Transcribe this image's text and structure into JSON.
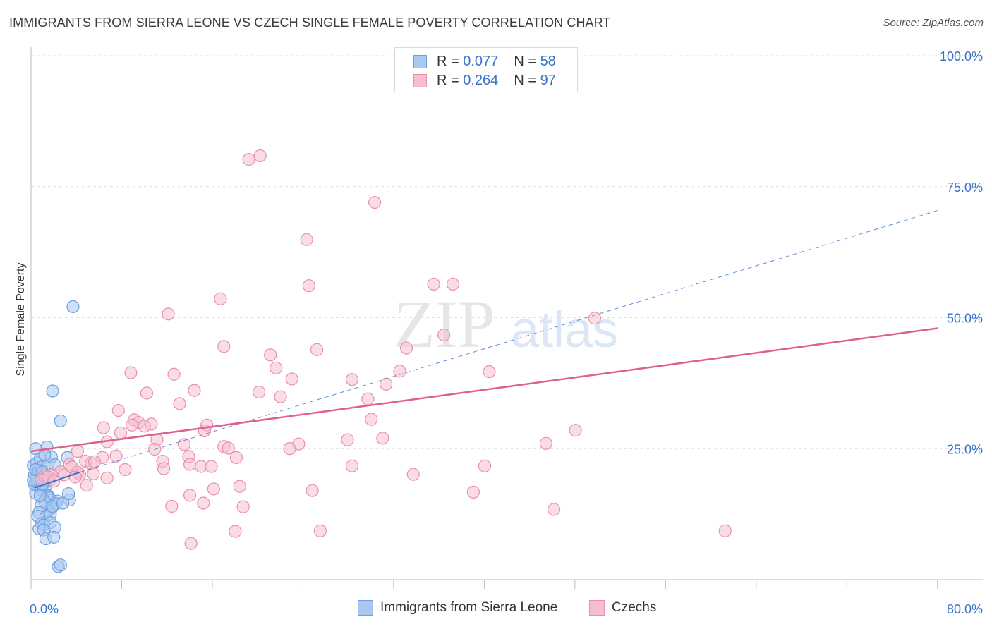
{
  "header": {
    "title": "IMMIGRANTS FROM SIERRA LEONE VS CZECH SINGLE FEMALE POVERTY CORRELATION CHART",
    "source": "Source: ZipAtlas.com"
  },
  "watermark": {
    "zip": "ZIP",
    "atlas": "atlas"
  },
  "legend_top": {
    "rows": [
      {
        "r_label": "R =",
        "r_value": "0.077",
        "n_label": "N =",
        "n_value": "58"
      },
      {
        "r_label": "R =",
        "r_value": "0.264",
        "n_label": "N =",
        "n_value": "97"
      }
    ]
  },
  "colors": {
    "blue_fill": "#a9c8f0",
    "blue_stroke": "#6f9fe0",
    "blue_line": "#3a6fd0",
    "pink_fill": "#f6bfd0",
    "pink_stroke": "#e98fae",
    "pink_line": "#e0608c",
    "tick_label": "#3a72c8"
  },
  "chart_data": {
    "type": "scatter",
    "title": "IMMIGRANTS FROM SIERRA LEONE VS CZECH SINGLE FEMALE POVERTY CORRELATION CHART",
    "ylabel": "Single Female Poverty",
    "xlabel": "",
    "xlim": [
      0,
      80
    ],
    "ylim": [
      0,
      100
    ],
    "x_tick_labels": [
      "0.0%",
      "80.0%"
    ],
    "y_ticks": [
      25,
      50,
      75,
      100
    ],
    "y_tick_labels": [
      "25.0%",
      "50.0%",
      "75.0%",
      "100.0%"
    ],
    "grid": true,
    "legend_position": "top-center",
    "series": [
      {
        "name": "Immigrants from Sierra Leone",
        "r": 0.077,
        "n": 58,
        "color": "blue",
        "trend": {
          "x": [
            0.3,
            4.3
          ],
          "y": [
            17.5,
            20.5
          ],
          "style": "solid"
        },
        "trend_ext": {
          "x": [
            4.3,
            80
          ],
          "y": [
            20.5,
            70.5
          ],
          "style": "dashed"
        },
        "points": [
          [
            3.7,
            52.1
          ],
          [
            1.9,
            36.0
          ],
          [
            2.6,
            30.3
          ],
          [
            3.2,
            23.3
          ],
          [
            3.4,
            15.2
          ],
          [
            1.4,
            25.3
          ],
          [
            0.4,
            25.0
          ],
          [
            0.2,
            21.8
          ],
          [
            0.3,
            20.0
          ],
          [
            0.5,
            22.3
          ],
          [
            0.6,
            19.6
          ],
          [
            0.6,
            17.8
          ],
          [
            0.7,
            20.8
          ],
          [
            0.8,
            23.1
          ],
          [
            0.9,
            21.5
          ],
          [
            1.0,
            19.4
          ],
          [
            1.2,
            18.5
          ],
          [
            1.3,
            17.9
          ],
          [
            0.8,
            17.2
          ],
          [
            1.5,
            16.0
          ],
          [
            1.6,
            15.6
          ],
          [
            1.7,
            15.2
          ],
          [
            1.5,
            22.1
          ],
          [
            1.8,
            23.4
          ],
          [
            2.1,
            21.9
          ],
          [
            2.3,
            15.0
          ],
          [
            2.2,
            14.5
          ],
          [
            1.8,
            13.6
          ],
          [
            1.5,
            13.2
          ],
          [
            1.2,
            14.9
          ],
          [
            0.9,
            14.2
          ],
          [
            0.7,
            12.8
          ],
          [
            0.6,
            12.1
          ],
          [
            1.3,
            12.0
          ],
          [
            1.7,
            12.5
          ],
          [
            1.9,
            14.0
          ],
          [
            0.4,
            16.5
          ],
          [
            0.3,
            18.2
          ],
          [
            0.5,
            19.0
          ],
          [
            0.9,
            10.7
          ],
          [
            1.1,
            10.4
          ],
          [
            1.7,
            10.9
          ],
          [
            2.1,
            10.0
          ],
          [
            0.7,
            9.7
          ],
          [
            1.1,
            9.5
          ],
          [
            1.3,
            7.8
          ],
          [
            2.0,
            8.1
          ],
          [
            2.4,
            2.5
          ],
          [
            2.6,
            2.8
          ],
          [
            0.2,
            19.0
          ],
          [
            1.0,
            18.2
          ],
          [
            1.6,
            19.0
          ],
          [
            0.8,
            16.0
          ],
          [
            2.8,
            14.6
          ],
          [
            3.3,
            16.4
          ],
          [
            1.2,
            23.8
          ],
          [
            0.4,
            21.0
          ],
          [
            1.0,
            20.6
          ]
        ]
      },
      {
        "name": "Czechs",
        "r": 0.264,
        "n": 97,
        "color": "pink",
        "trend": {
          "x": [
            0,
            80
          ],
          "y": [
            24.5,
            48.0
          ],
          "style": "solid"
        },
        "points": [
          [
            20.2,
            80.9
          ],
          [
            19.2,
            80.2
          ],
          [
            30.3,
            72.0
          ],
          [
            24.3,
            64.9
          ],
          [
            24.5,
            56.1
          ],
          [
            35.5,
            56.4
          ],
          [
            37.2,
            56.4
          ],
          [
            16.7,
            53.6
          ],
          [
            12.1,
            50.7
          ],
          [
            49.7,
            49.9
          ],
          [
            36.4,
            46.7
          ],
          [
            17.0,
            44.5
          ],
          [
            25.2,
            43.9
          ],
          [
            33.1,
            44.2
          ],
          [
            21.1,
            42.9
          ],
          [
            21.6,
            40.4
          ],
          [
            8.8,
            39.5
          ],
          [
            12.6,
            39.2
          ],
          [
            40.4,
            39.7
          ],
          [
            32.5,
            39.8
          ],
          [
            23.0,
            38.3
          ],
          [
            28.3,
            38.2
          ],
          [
            31.3,
            37.3
          ],
          [
            14.4,
            36.1
          ],
          [
            10.2,
            35.6
          ],
          [
            20.1,
            35.8
          ],
          [
            22.0,
            34.9
          ],
          [
            29.7,
            34.5
          ],
          [
            13.1,
            33.6
          ],
          [
            7.7,
            32.3
          ],
          [
            9.1,
            30.5
          ],
          [
            9.5,
            30.0
          ],
          [
            10.6,
            29.7
          ],
          [
            8.9,
            29.5
          ],
          [
            10.0,
            29.3
          ],
          [
            15.5,
            29.5
          ],
          [
            30.0,
            30.6
          ],
          [
            6.4,
            29.0
          ],
          [
            7.9,
            28.0
          ],
          [
            15.3,
            28.4
          ],
          [
            48.0,
            28.5
          ],
          [
            11.1,
            26.7
          ],
          [
            6.7,
            26.3
          ],
          [
            13.5,
            25.8
          ],
          [
            17.0,
            25.4
          ],
          [
            17.4,
            25.1
          ],
          [
            23.6,
            25.9
          ],
          [
            22.8,
            25.0
          ],
          [
            27.9,
            26.7
          ],
          [
            31.0,
            27.0
          ],
          [
            45.4,
            26.0
          ],
          [
            10.9,
            24.9
          ],
          [
            4.1,
            24.5
          ],
          [
            6.3,
            23.3
          ],
          [
            7.5,
            23.6
          ],
          [
            13.9,
            23.5
          ],
          [
            18.1,
            23.3
          ],
          [
            3.4,
            22.0
          ],
          [
            4.8,
            22.6
          ],
          [
            5.3,
            22.2
          ],
          [
            5.6,
            22.5
          ],
          [
            14.0,
            22.0
          ],
          [
            11.6,
            22.6
          ],
          [
            15.0,
            21.6
          ],
          [
            15.9,
            21.6
          ],
          [
            28.3,
            21.7
          ],
          [
            40.0,
            21.7
          ],
          [
            11.7,
            21.2
          ],
          [
            8.3,
            21.0
          ],
          [
            3.6,
            21.5
          ],
          [
            2.6,
            20.6
          ],
          [
            2.9,
            20.0
          ],
          [
            4.3,
            20.1
          ],
          [
            5.5,
            20.2
          ],
          [
            1.8,
            20.0
          ],
          [
            1.2,
            19.8
          ],
          [
            0.9,
            19.1
          ],
          [
            1.5,
            19.6
          ],
          [
            2.0,
            18.8
          ],
          [
            4.1,
            20.5
          ],
          [
            3.9,
            19.6
          ],
          [
            6.7,
            19.4
          ],
          [
            33.7,
            20.1
          ],
          [
            4.9,
            18.0
          ],
          [
            16.1,
            17.3
          ],
          [
            18.4,
            17.8
          ],
          [
            24.8,
            17.0
          ],
          [
            39.0,
            16.7
          ],
          [
            14.0,
            16.1
          ],
          [
            12.4,
            14.0
          ],
          [
            15.2,
            14.6
          ],
          [
            18.7,
            13.9
          ],
          [
            46.1,
            13.4
          ],
          [
            18.0,
            9.2
          ],
          [
            25.5,
            9.3
          ],
          [
            61.2,
            9.3
          ],
          [
            14.1,
            6.9
          ]
        ]
      }
    ]
  },
  "legend_bottom": [
    {
      "label": "Immigrants from Sierra Leone"
    },
    {
      "label": "Czechs"
    }
  ]
}
